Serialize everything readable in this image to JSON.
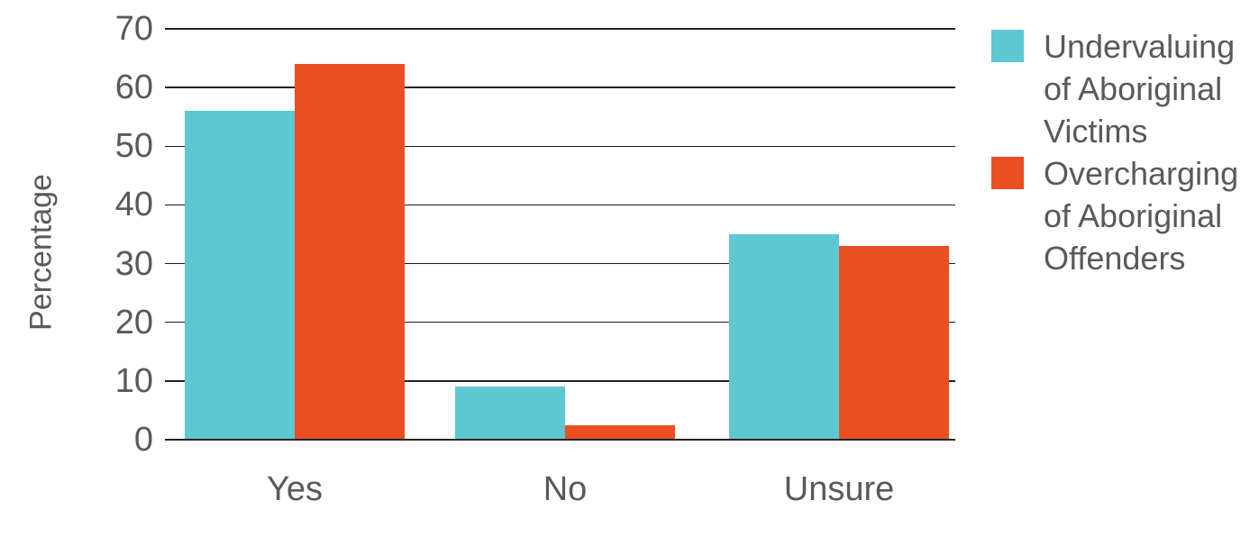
{
  "chart_data": {
    "type": "bar",
    "categories": [
      "Yes",
      "No",
      "Unsure"
    ],
    "series": [
      {
        "name": "Undervaluing of Aboriginal Victims",
        "color": "#5cc8d2",
        "values": [
          56,
          9,
          35
        ]
      },
      {
        "name": "Overcharging of Aboriginal Offenders",
        "color": "#ea4f24",
        "values": [
          64,
          2.5,
          33
        ]
      }
    ],
    "title": "",
    "xlabel": "",
    "ylabel": "Percentage",
    "ylim": [
      0,
      70
    ],
    "ytick_step": 10,
    "yticks": [
      0,
      10,
      20,
      30,
      40,
      50,
      60,
      70
    ],
    "grid": true,
    "legend_position": "right"
  },
  "colors": {
    "background": "#ffffff",
    "text": "#58595b",
    "gridline": "#231f20",
    "series_teal": "#5cc8d2",
    "series_orange": "#ea4f24"
  }
}
